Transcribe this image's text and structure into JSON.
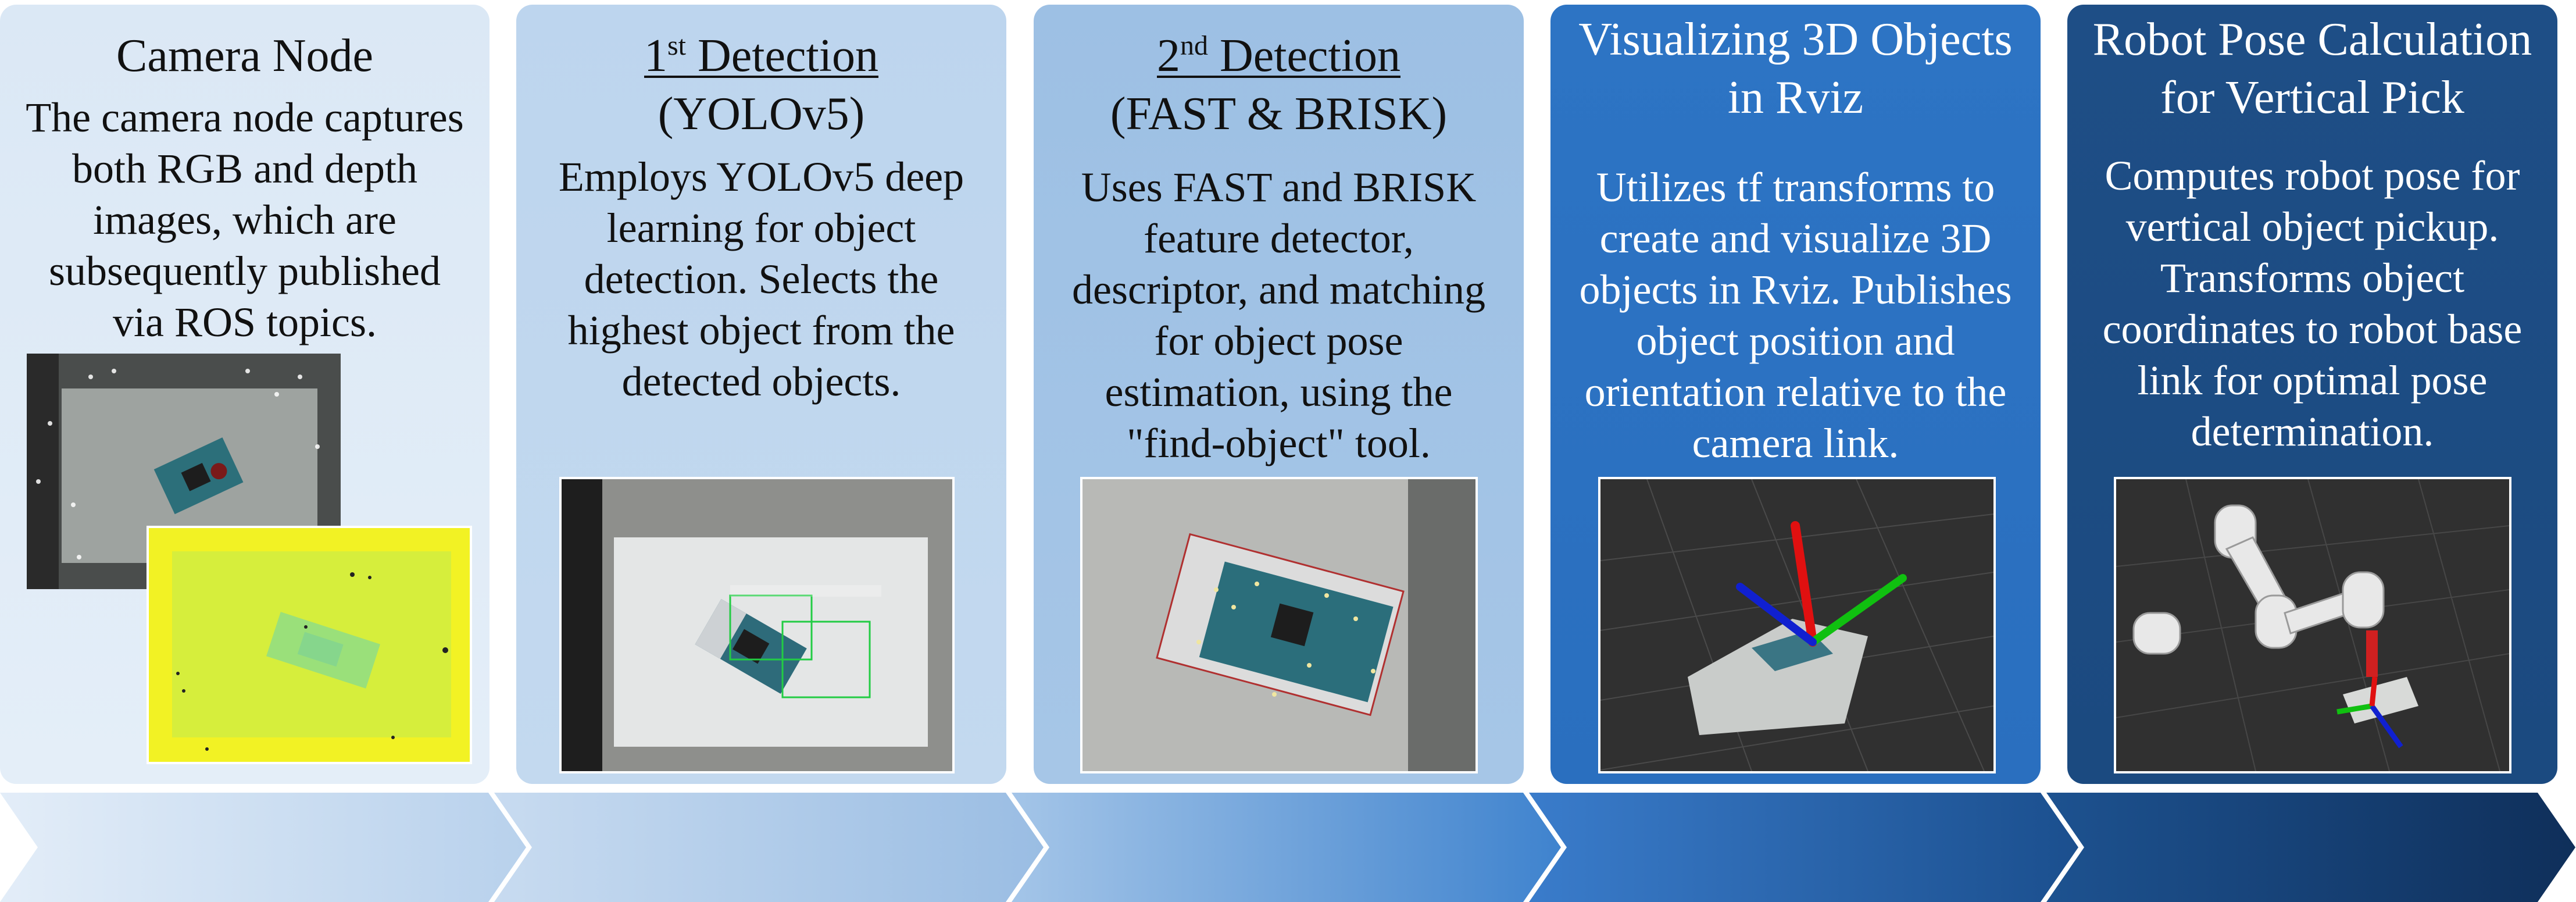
{
  "stages": [
    {
      "title": "Camera Node",
      "body": "The camera node captures both RGB and depth images, which are subsequently published via ROS topics."
    },
    {
      "title_num": "1",
      "title_sup": "st",
      "title_rest": " Detection",
      "title_line2": "(YOLOv5)",
      "body": "Employs YOLOv5 deep learning for object detection. Selects the highest object from the detected objects."
    },
    {
      "title_num": "2",
      "title_sup": "nd",
      "title_rest": " Detection",
      "title_line2": "(FAST & BRISK)",
      "body": "Uses FAST and BRISK feature detector, descriptor, and matching for object pose estimation, using the \"find-object\" tool."
    },
    {
      "title": "Visualizing 3D Objects in Rviz",
      "body": "Utilizes tf transforms to create and visualize 3D objects in Rviz. Publishes object position and orientation relative to the camera link."
    },
    {
      "title": "Robot Pose Calculation for Vertical Pick",
      "body": "Computes robot pose for vertical object pickup. Transforms object coordinates to robot base link for optimal pose determination."
    }
  ],
  "colors": {
    "stage1": "#dbe8f5",
    "stage2": "#bdd5ee",
    "stage3": "#9dc0e4",
    "stage4": "#2d74c4",
    "stage5": "#1e4e86",
    "detection_box": "#22cc44"
  }
}
